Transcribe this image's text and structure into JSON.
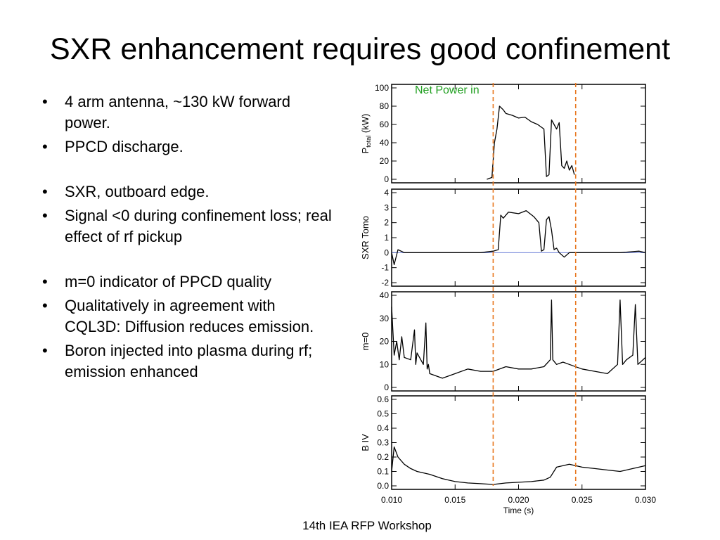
{
  "slide": {
    "title": "SXR enhancement requires good confinement",
    "bullets": [
      "4 arm antenna, ~130 kW forward power.",
      "PPCD discharge.",
      "SXR, outboard edge.",
      "Signal <0 during confinement loss; real effect of rf pickup",
      "m=0  indicator of PPCD quality",
      "Qualitatively in agreement with CQL3D:  Diffusion reduces emission.",
      "Boron injected into plasma during rf; emission enhanced"
    ],
    "footer": "14th IEA RFP Workshop"
  },
  "chart_data": {
    "type": "line",
    "xlabel": "Time (s)",
    "xlim": [
      0.01,
      0.03
    ],
    "xticks": [
      "0.010",
      "0.015",
      "0.020",
      "0.025",
      "0.030"
    ],
    "annotation": "Net Power in",
    "annotation_color": "#22a022",
    "vlines": [
      0.018,
      0.0245
    ],
    "vline_color": "#e87820",
    "grid": false,
    "panels": [
      {
        "ylabel_main": "P",
        "ylabel_sub": "total",
        "ylabel_unit": " (kW)",
        "ylim": [
          0,
          100
        ],
        "yticks": [
          "0",
          "20",
          "40",
          "60",
          "80",
          "100"
        ],
        "x": [
          0.0175,
          0.0179,
          0.0181,
          0.0183,
          0.0185,
          0.0188,
          0.019,
          0.0195,
          0.02,
          0.0205,
          0.021,
          0.0215,
          0.0218,
          0.022,
          0.0222,
          0.0224,
          0.0226,
          0.0228,
          0.023,
          0.0232,
          0.0234,
          0.0236,
          0.0238,
          0.024,
          0.0242,
          0.0244
        ],
        "y": [
          0,
          2,
          40,
          55,
          80,
          76,
          72,
          70,
          67,
          68,
          63,
          60,
          57,
          55,
          3,
          5,
          65,
          60,
          55,
          62,
          15,
          12,
          20,
          10,
          15,
          5
        ]
      },
      {
        "ylabel_main": "SXR Tomo",
        "ylim": [
          -2,
          4
        ],
        "yticks": [
          "-2",
          "-1",
          "0",
          "1",
          "2",
          "3",
          "4"
        ],
        "zero_line": true,
        "zero_color": "#6b7fd7",
        "x": [
          0.01,
          0.0102,
          0.0105,
          0.011,
          0.014,
          0.017,
          0.018,
          0.0184,
          0.0186,
          0.0188,
          0.0192,
          0.02,
          0.0206,
          0.0212,
          0.0216,
          0.0218,
          0.022,
          0.0222,
          0.0224,
          0.0226,
          0.0228,
          0.023,
          0.0232,
          0.0236,
          0.024,
          0.025,
          0.028,
          0.0295,
          0.03
        ],
        "y": [
          0,
          -0.8,
          0.2,
          0,
          0,
          0,
          0.1,
          0.2,
          2.5,
          2.3,
          2.7,
          2.6,
          2.8,
          2.4,
          2.0,
          0.1,
          0.2,
          2.2,
          2.4,
          1.5,
          0.2,
          0.3,
          0,
          -0.3,
          0,
          0,
          0,
          0.1,
          0
        ]
      },
      {
        "ylabel_main": "m=0",
        "ylim": [
          0,
          40
        ],
        "yticks": [
          "0",
          "10",
          "20",
          "30",
          "40"
        ],
        "x": [
          0.01,
          0.0102,
          0.0104,
          0.0106,
          0.0108,
          0.011,
          0.0115,
          0.0118,
          0.0119,
          0.012,
          0.0125,
          0.0127,
          0.0128,
          0.0129,
          0.013,
          0.0135,
          0.014,
          0.015,
          0.016,
          0.017,
          0.018,
          0.019,
          0.02,
          0.021,
          0.022,
          0.0225,
          0.0226,
          0.0227,
          0.023,
          0.0235,
          0.024,
          0.025,
          0.026,
          0.027,
          0.0278,
          0.028,
          0.0282,
          0.0285,
          0.029,
          0.0292,
          0.0294,
          0.03
        ],
        "y": [
          35,
          14,
          20,
          12,
          22,
          13,
          12,
          25,
          10,
          15,
          10,
          28,
          8,
          10,
          6,
          5,
          4,
          6,
          8,
          7,
          7,
          9,
          8,
          8,
          9,
          12,
          38,
          12,
          10,
          11,
          10,
          8,
          7,
          6,
          10,
          38,
          10,
          12,
          14,
          36,
          10,
          13
        ]
      },
      {
        "ylabel_main": "B IV",
        "ylim": [
          0,
          0.6
        ],
        "yticks": [
          "0.0",
          "0.1",
          "0.2",
          "0.3",
          "0.4",
          "0.5",
          "0.6"
        ],
        "x": [
          0.01,
          0.0102,
          0.0105,
          0.011,
          0.0115,
          0.012,
          0.013,
          0.014,
          0.015,
          0.016,
          0.017,
          0.018,
          0.019,
          0.02,
          0.021,
          0.022,
          0.0225,
          0.023,
          0.024,
          0.025,
          0.026,
          0.027,
          0.028,
          0.029,
          0.03
        ],
        "y": [
          0.1,
          0.27,
          0.2,
          0.15,
          0.12,
          0.1,
          0.08,
          0.05,
          0.03,
          0.02,
          0.015,
          0.01,
          0.02,
          0.025,
          0.03,
          0.04,
          0.06,
          0.13,
          0.15,
          0.13,
          0.12,
          0.11,
          0.1,
          0.12,
          0.14
        ]
      }
    ]
  }
}
